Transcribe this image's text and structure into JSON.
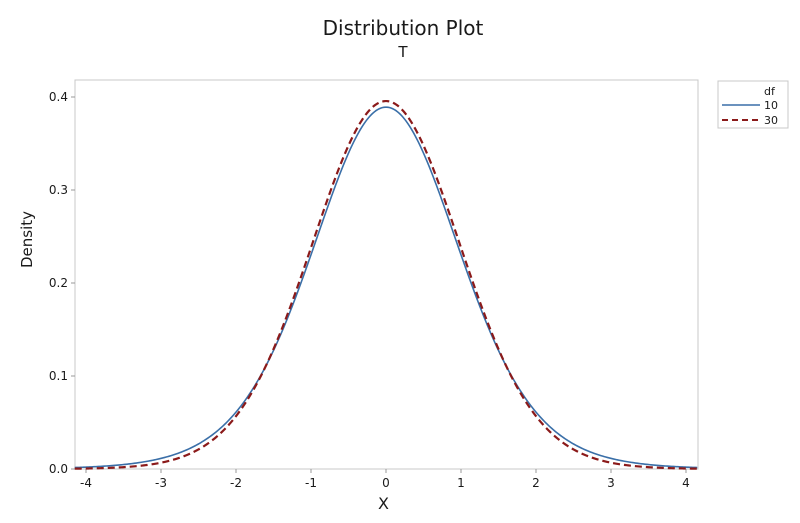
{
  "chart": {
    "title": "Distribution Plot",
    "subtitle": "T",
    "xlabel": "X",
    "ylabel": "Density"
  },
  "legend": {
    "title": "df",
    "entries": [
      {
        "label": "10",
        "color": "#3a6fa8",
        "style": "solid"
      },
      {
        "label": "30",
        "color": "#8b1a1a",
        "style": "dashed"
      }
    ]
  },
  "chart_data": {
    "type": "line",
    "title": "Distribution Plot",
    "subtitle": "T",
    "xlabel": "X",
    "ylabel": "Density",
    "xlim": [
      -4.15,
      4.15
    ],
    "ylim": [
      0.0,
      0.42
    ],
    "xticks": [
      -4,
      -3,
      -2,
      -1,
      0,
      1,
      2,
      3,
      4
    ],
    "yticks": [
      "0.0",
      "0.1",
      "0.2",
      "0.3",
      "0.4"
    ],
    "grid": false,
    "legend_position": "top-right outside",
    "legend_title": "df",
    "series": [
      {
        "name": "10",
        "distribution": "Student t",
        "df": 10,
        "color": "#3a6fa8",
        "style": "solid",
        "x": [
          -4,
          -3,
          -2,
          -1,
          0,
          1,
          2,
          3,
          4
        ],
        "values": [
          0.0028,
          0.0114,
          0.0611,
          0.2304,
          0.3891,
          0.2304,
          0.0611,
          0.0114,
          0.0028
        ]
      },
      {
        "name": "30",
        "distribution": "Student t",
        "df": 30,
        "color": "#8b1a1a",
        "style": "dashed",
        "x": [
          -4,
          -3,
          -2,
          -1,
          0,
          1,
          2,
          3,
          4
        ],
        "values": [
          0.0005,
          0.0062,
          0.0551,
          0.2379,
          0.3956,
          0.2379,
          0.0551,
          0.0062,
          0.0005
        ]
      }
    ]
  }
}
